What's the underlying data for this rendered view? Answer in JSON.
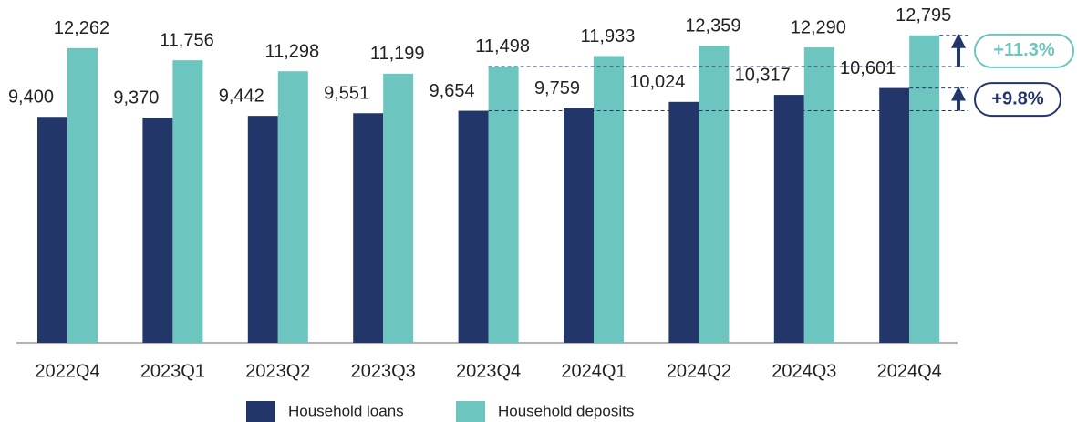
{
  "chart_data": {
    "type": "bar",
    "categories": [
      "2022Q4",
      "2023Q1",
      "2023Q2",
      "2023Q3",
      "2023Q4",
      "2024Q1",
      "2024Q2",
      "2024Q3",
      "2024Q4"
    ],
    "series": [
      {
        "name": "Household loans",
        "color": "#22366a",
        "values": [
          9400,
          9370,
          9442,
          9551,
          9654,
          9759,
          10024,
          10317,
          10601
        ],
        "value_labels": [
          "9,400",
          "9,370",
          "9,442",
          "9,551",
          "9,654",
          "9,759",
          "10,024",
          "10,317",
          "10,601"
        ]
      },
      {
        "name": "Household deposits",
        "color": "#6cc5bf",
        "values": [
          12262,
          11756,
          11298,
          11199,
          11498,
          11933,
          12359,
          12290,
          12795
        ],
        "value_labels": [
          "12,262",
          "11,756",
          "11,298",
          "11,199",
          "11,498",
          "11,933",
          "12,359",
          "12,290",
          "12,795"
        ]
      }
    ],
    "ylim": [
      0,
      14000
    ],
    "annotations": [
      {
        "text": "+11.3%",
        "series": 1,
        "from": 4,
        "to": 8,
        "color": "#6cc5bf"
      },
      {
        "text": "+9.8%",
        "series": 0,
        "from": 4,
        "to": 8,
        "color": "#22366a"
      }
    ]
  }
}
